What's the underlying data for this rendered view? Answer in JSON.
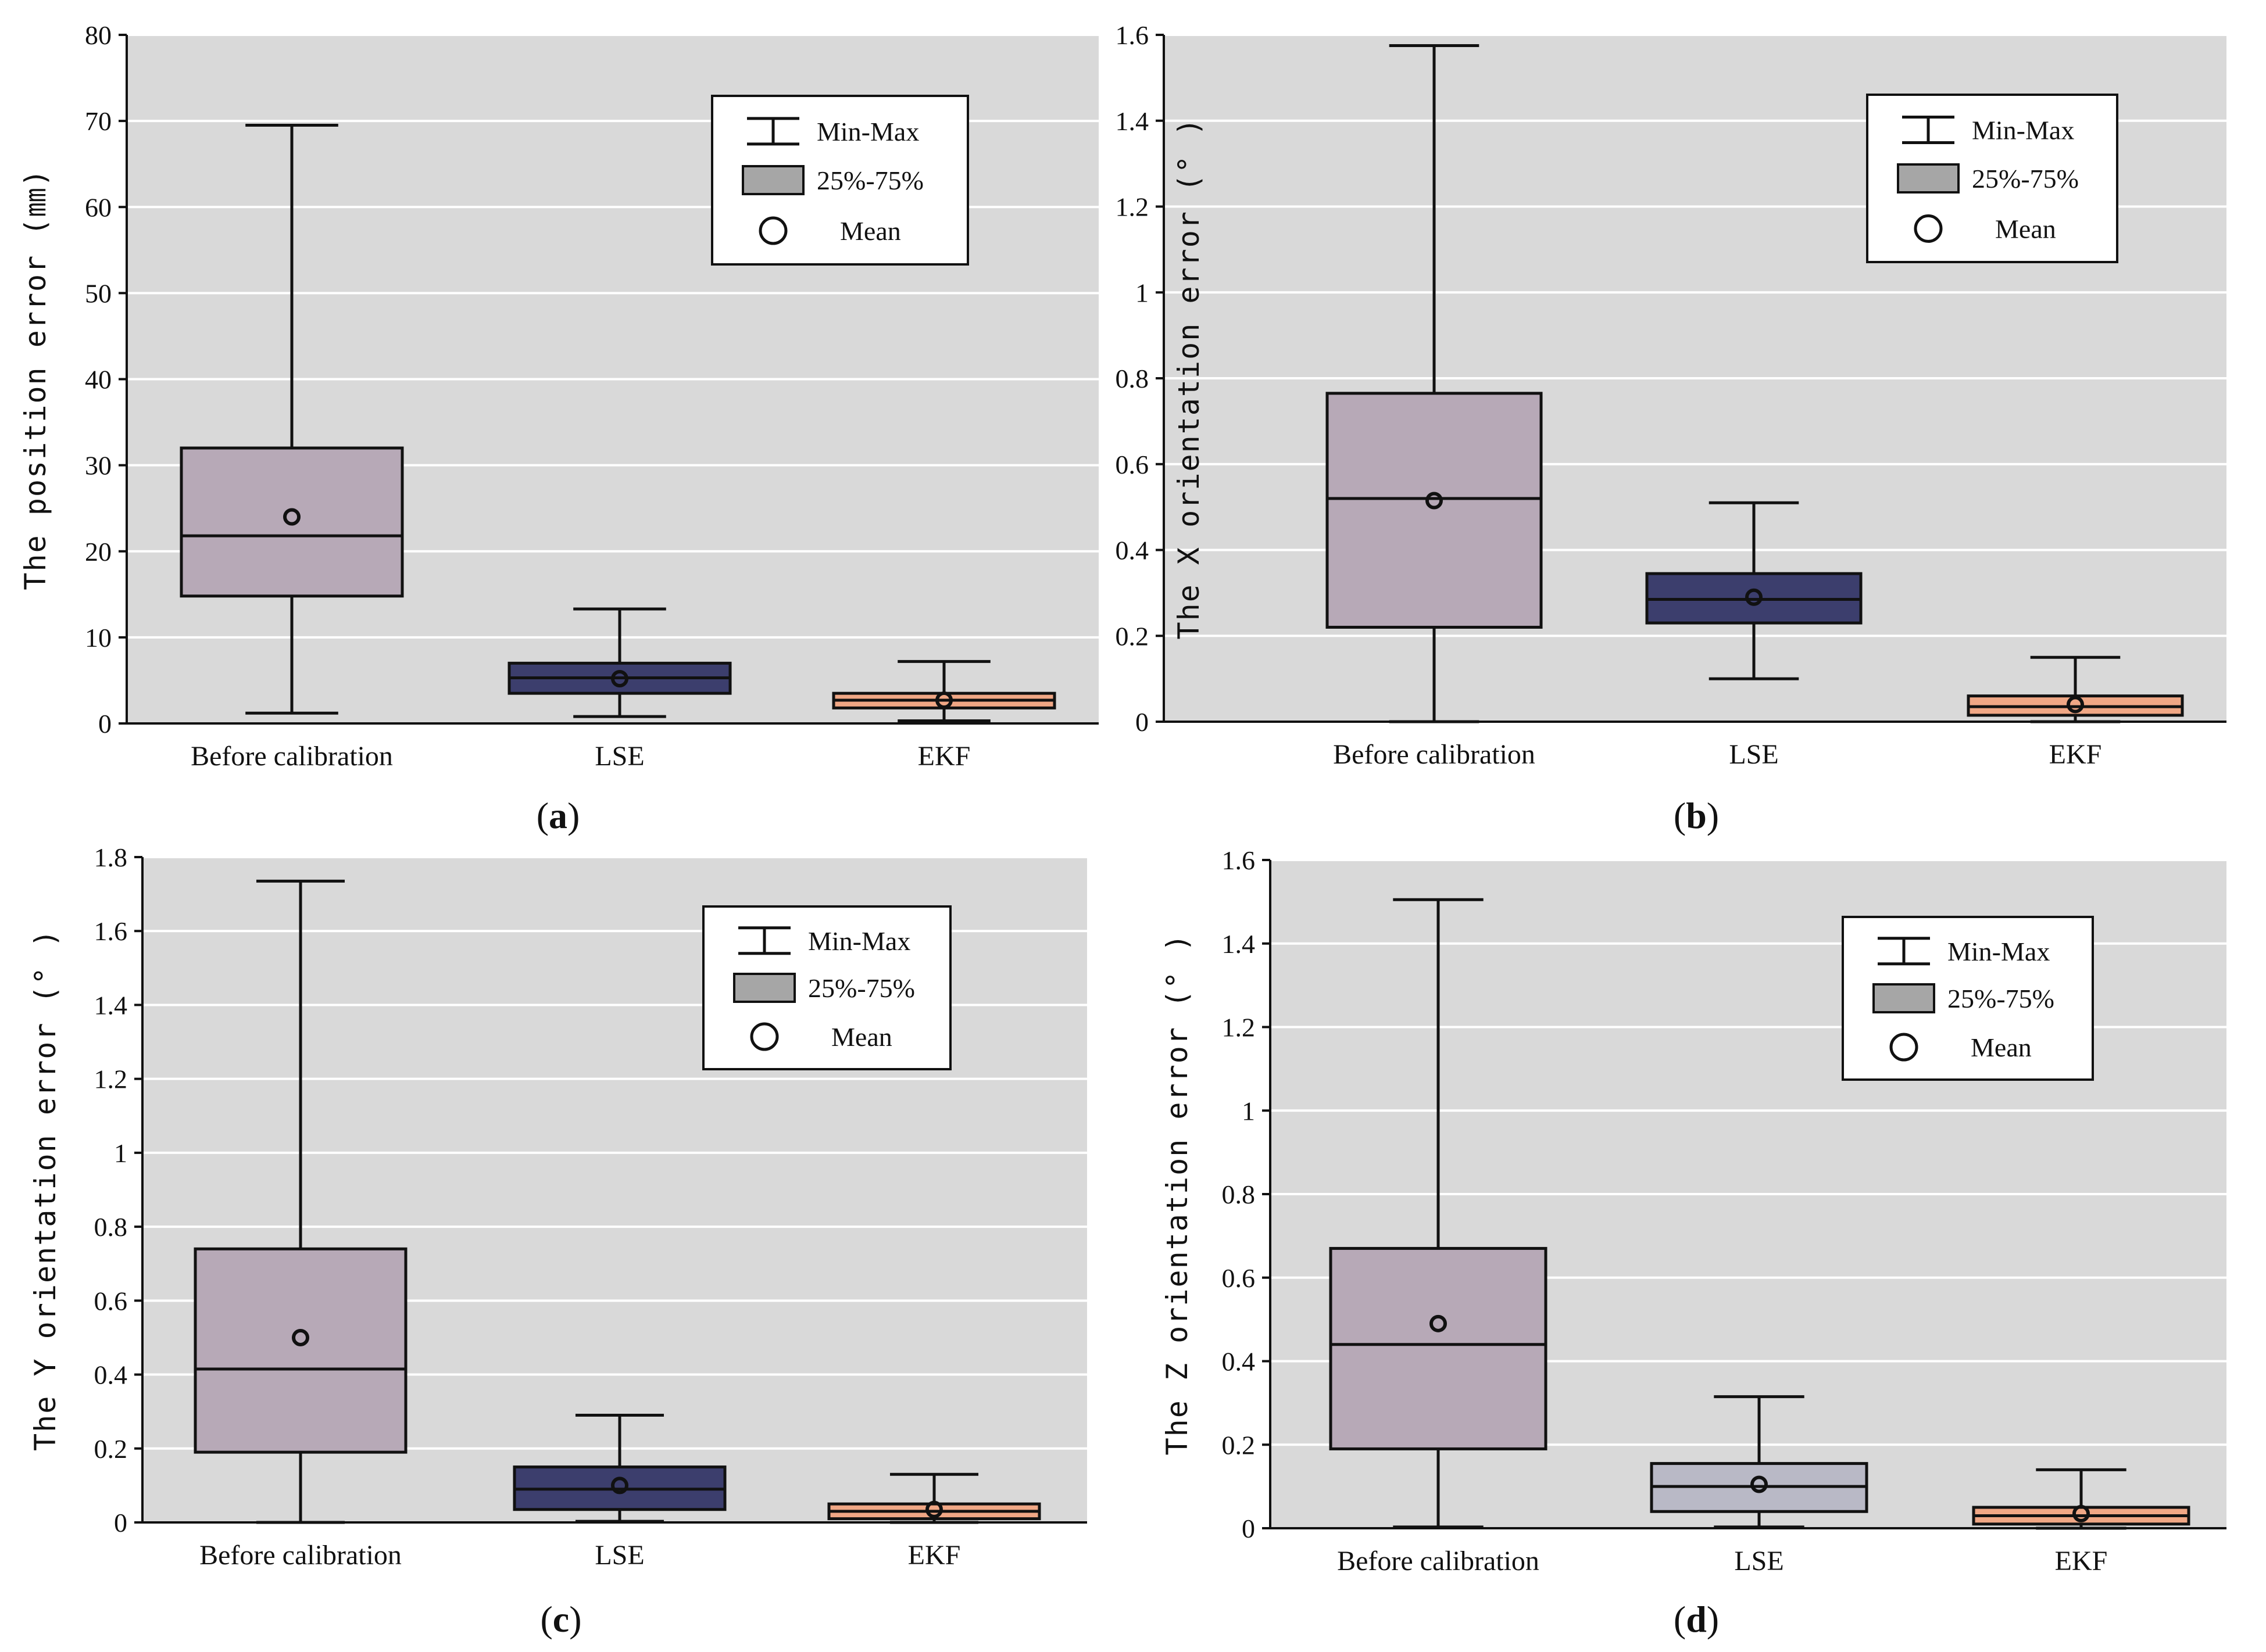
{
  "colors": {
    "plot_bg": "#d9d9d9",
    "grid": "#ffffff",
    "stroke": "#111111",
    "legend_box_fill": "#a6a6a6",
    "before": "#b7a9b7",
    "lse_dark": "#3c3e6d",
    "lse_light": "#b9b9c6",
    "ekf": "#f0a785"
  },
  "legend": {
    "minmax_label": "Min-Max",
    "box_label": "25%-75%",
    "mean_label": "Mean"
  },
  "chart_data": [
    {
      "type": "box",
      "panel_label": "(a)",
      "ylabel": "The position error (㎜)",
      "ylim": [
        0,
        80
      ],
      "yticks": [
        0,
        10,
        20,
        30,
        40,
        50,
        60,
        70,
        80
      ],
      "ytick_labels": [
        "0",
        "10",
        "20",
        "30",
        "40",
        "50",
        "60",
        "70",
        "80"
      ],
      "categories": [
        "Before calibration",
        "LSE",
        "EKF"
      ],
      "boxes": [
        {
          "min": 1.2,
          "q1": 14.8,
          "median": 21.8,
          "q3": 32.0,
          "max": 69.5,
          "mean": 24.0
        },
        {
          "min": 0.8,
          "q1": 3.5,
          "median": 5.3,
          "q3": 7.0,
          "max": 13.3,
          "mean": 5.2
        },
        {
          "min": 0.3,
          "q1": 1.8,
          "median": 2.7,
          "q3": 3.5,
          "max": 7.2,
          "mean": 2.7
        }
      ]
    },
    {
      "type": "box",
      "panel_label": "(b)",
      "ylabel": "The X orientation error (° )",
      "ylim": [
        0,
        1.6
      ],
      "yticks": [
        0,
        0.2,
        0.4,
        0.6,
        0.8,
        1,
        1.2,
        1.4,
        1.6
      ],
      "ytick_labels": [
        "0",
        "0.2",
        "0.4",
        "0.6",
        "0.8",
        "1",
        "1.2",
        "1.4",
        "1.6"
      ],
      "categories": [
        "Before calibration",
        "LSE",
        "EKF"
      ],
      "boxes": [
        {
          "min": 0.0,
          "q1": 0.22,
          "median": 0.52,
          "q3": 0.765,
          "max": 1.575,
          "mean": 0.515
        },
        {
          "min": 0.1,
          "q1": 0.23,
          "median": 0.285,
          "q3": 0.345,
          "max": 0.51,
          "mean": 0.29
        },
        {
          "min": 0.0,
          "q1": 0.015,
          "median": 0.035,
          "q3": 0.06,
          "max": 0.15,
          "mean": 0.04
        }
      ]
    },
    {
      "type": "box",
      "panel_label": "(c)",
      "ylabel": "The Y orientation error (° )",
      "ylim": [
        0,
        1.8
      ],
      "yticks": [
        0,
        0.2,
        0.4,
        0.6,
        0.8,
        1,
        1.2,
        1.4,
        1.6,
        1.8
      ],
      "ytick_labels": [
        "0",
        "0.2",
        "0.4",
        "0.6",
        "0.8",
        "1",
        "1.2",
        "1.4",
        "1.6",
        "1.8"
      ],
      "categories": [
        "Before calibration",
        "LSE",
        "EKF"
      ],
      "boxes": [
        {
          "min": 0.0,
          "q1": 0.19,
          "median": 0.415,
          "q3": 0.74,
          "max": 1.735,
          "mean": 0.5
        },
        {
          "min": 0.003,
          "q1": 0.035,
          "median": 0.09,
          "q3": 0.15,
          "max": 0.29,
          "mean": 0.1
        },
        {
          "min": 0.0,
          "q1": 0.01,
          "median": 0.03,
          "q3": 0.05,
          "max": 0.13,
          "mean": 0.035
        }
      ]
    },
    {
      "type": "box",
      "panel_label": "(d)",
      "ylabel": "The Z orientation error (° )",
      "ylim": [
        0,
        1.6
      ],
      "yticks": [
        0,
        0.2,
        0.4,
        0.6,
        0.8,
        1,
        1.2,
        1.4,
        1.6
      ],
      "ytick_labels": [
        "0",
        "0.2",
        "0.4",
        "0.6",
        "0.8",
        "1",
        "1.2",
        "1.4",
        "1.6"
      ],
      "categories": [
        "Before calibration",
        "LSE",
        "EKF"
      ],
      "boxes": [
        {
          "min": 0.003,
          "q1": 0.19,
          "median": 0.44,
          "q3": 0.67,
          "max": 1.505,
          "mean": 0.49
        },
        {
          "min": 0.003,
          "q1": 0.04,
          "median": 0.1,
          "q3": 0.155,
          "max": 0.315,
          "mean": 0.105
        },
        {
          "min": 0.0,
          "q1": 0.01,
          "median": 0.03,
          "q3": 0.05,
          "max": 0.14,
          "mean": 0.035
        }
      ]
    }
  ]
}
